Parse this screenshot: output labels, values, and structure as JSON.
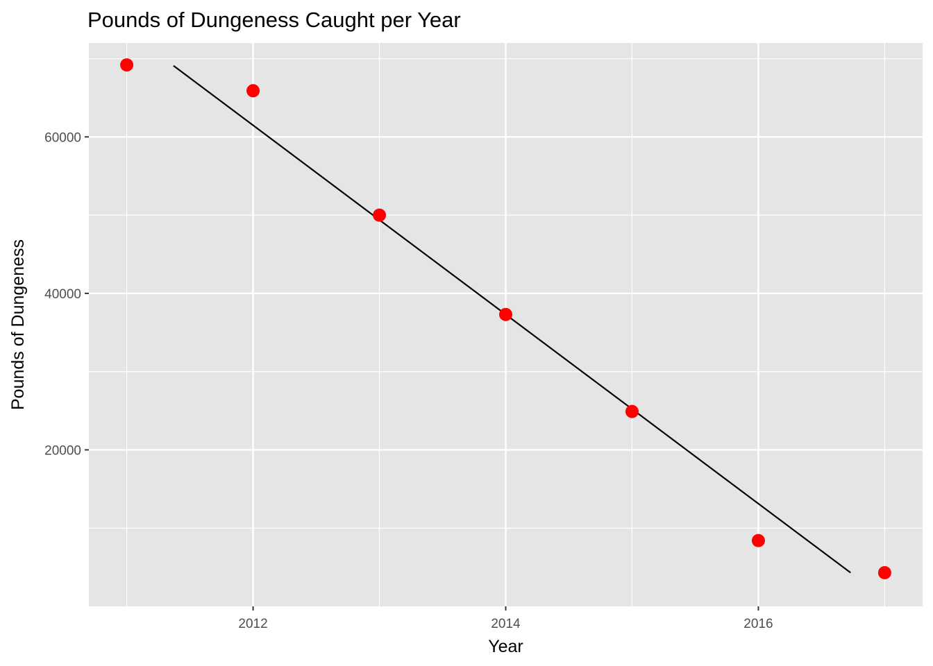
{
  "chart_data": {
    "type": "scatter",
    "title": "Pounds of Dungeness Caught per Year",
    "xlabel": "Year",
    "ylabel": "Pounds of Dungeness",
    "xlim": [
      2010.7,
      2017.3
    ],
    "ylim": [
      0,
      72000
    ],
    "x_ticks": [
      2012,
      2014,
      2016
    ],
    "x_tick_labels": [
      "2012",
      "2014",
      "2016"
    ],
    "y_ticks": [
      20000,
      40000,
      60000
    ],
    "y_tick_labels": [
      "20000",
      "40000",
      "60000"
    ],
    "x_minor_ticks": [
      2011,
      2013,
      2015,
      2017
    ],
    "y_minor_ticks": [
      10000,
      30000,
      50000,
      70000
    ],
    "grid": true,
    "series": [
      {
        "type": "scatter",
        "color": "#ff0000",
        "points": [
          {
            "x": 2011,
            "y": 69200
          },
          {
            "x": 2012,
            "y": 65900
          },
          {
            "x": 2013,
            "y": 50000
          },
          {
            "x": 2014,
            "y": 37300
          },
          {
            "x": 2015,
            "y": 24900
          },
          {
            "x": 2016,
            "y": 8400
          },
          {
            "x": 2017,
            "y": 4300
          }
        ]
      },
      {
        "type": "line",
        "color": "#000000",
        "x": [
          2011.37,
          2016.73
        ],
        "y": [
          69100,
          4300
        ]
      }
    ]
  }
}
